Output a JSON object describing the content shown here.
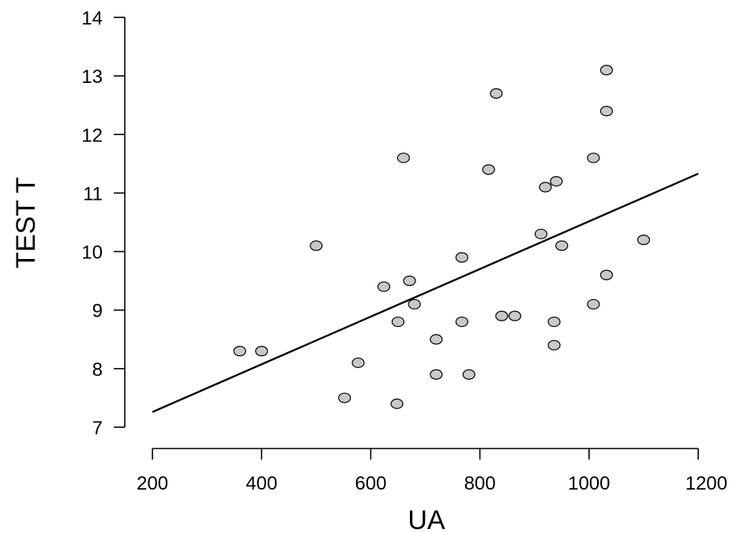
{
  "chart_data": {
    "type": "scatter",
    "xlabel": "UA",
    "ylabel": "TEST T",
    "xlim": [
      200,
      1200
    ],
    "ylim": [
      7,
      14
    ],
    "xticks": [
      200,
      400,
      600,
      800,
      1000,
      1200
    ],
    "yticks": [
      7,
      8,
      9,
      10,
      11,
      12,
      13,
      14
    ],
    "xtick_labels": [
      "200",
      "400",
      "600",
      "800",
      "1000",
      "1200"
    ],
    "ytick_labels": [
      "7",
      "8",
      "9",
      "10",
      "11",
      "12",
      "13",
      "14"
    ],
    "grid": false,
    "legend": "none",
    "points": [
      {
        "x": 360,
        "y": 8.3
      },
      {
        "x": 400,
        "y": 8.3
      },
      {
        "x": 500,
        "y": 10.1
      },
      {
        "x": 552,
        "y": 7.5
      },
      {
        "x": 577,
        "y": 8.1
      },
      {
        "x": 624,
        "y": 9.4
      },
      {
        "x": 648,
        "y": 7.4
      },
      {
        "x": 650,
        "y": 8.8
      },
      {
        "x": 660,
        "y": 11.6
      },
      {
        "x": 671,
        "y": 9.5
      },
      {
        "x": 680,
        "y": 9.1
      },
      {
        "x": 720,
        "y": 7.9
      },
      {
        "x": 720,
        "y": 8.5
      },
      {
        "x": 767,
        "y": 8.8
      },
      {
        "x": 767,
        "y": 9.9
      },
      {
        "x": 780,
        "y": 7.9
      },
      {
        "x": 816,
        "y": 11.4
      },
      {
        "x": 830,
        "y": 12.7
      },
      {
        "x": 840,
        "y": 8.9
      },
      {
        "x": 864,
        "y": 8.9
      },
      {
        "x": 912,
        "y": 10.3
      },
      {
        "x": 920,
        "y": 11.1
      },
      {
        "x": 936,
        "y": 8.8
      },
      {
        "x": 936,
        "y": 8.4
      },
      {
        "x": 940,
        "y": 11.2
      },
      {
        "x": 950,
        "y": 10.1
      },
      {
        "x": 1008,
        "y": 11.6
      },
      {
        "x": 1008,
        "y": 9.1
      },
      {
        "x": 1032,
        "y": 12.4
      },
      {
        "x": 1032,
        "y": 13.1
      },
      {
        "x": 1032,
        "y": 9.6
      },
      {
        "x": 1100,
        "y": 10.2
      }
    ],
    "regression_line": {
      "x": [
        200,
        1200
      ],
      "y": [
        7.26,
        11.33
      ]
    },
    "marker_fill": "#c8c8c8",
    "marker_stroke": "#000000",
    "line_color": "#000000"
  }
}
